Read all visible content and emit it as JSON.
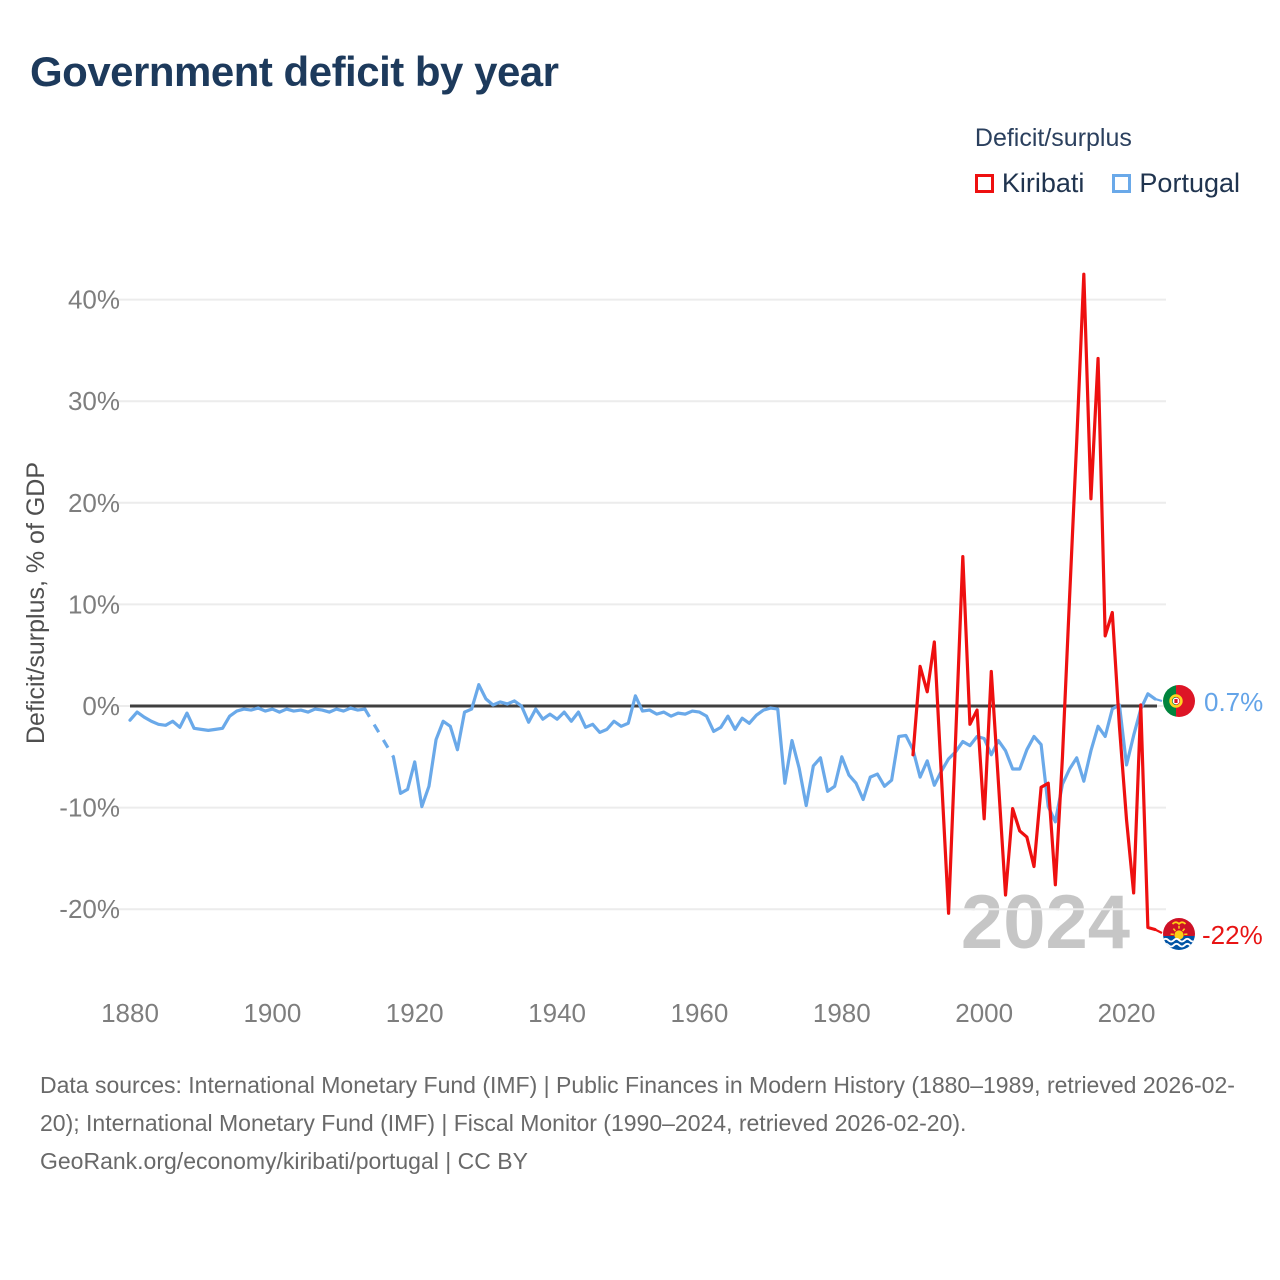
{
  "title": "Government deficit by year",
  "legend": {
    "title": "Deficit/surplus",
    "items": [
      {
        "label": "Kiribati",
        "color": "#ee1010"
      },
      {
        "label": "Portugal",
        "color": "#6aa9e9"
      }
    ]
  },
  "watermark": "2024",
  "end_labels": {
    "portugal": "0.7%",
    "kiribati": "-22%"
  },
  "footer": {
    "sources": "Data sources: International Monetary Fund (IMF) | Public Finances in Modern History (1880–1989, retrieved 2026-02-20); International Monetary Fund (IMF) | Fiscal Monitor (1990–2024, retrieved 2026-02-20).",
    "attribution": "GeoRank.org/economy/kiribati/portugal | CC BY"
  },
  "chart_data": {
    "type": "line",
    "title": "Government deficit by year",
    "ylabel": "Deficit/surplus, % of GDP",
    "xlabel": "",
    "ylim": [
      -24,
      44
    ],
    "xlim": [
      1878,
      2026
    ],
    "grid": true,
    "zero_baseline": true,
    "legend_position": "top-right",
    "yticks": [
      {
        "value": 40,
        "label": "40%"
      },
      {
        "value": 30,
        "label": "30%"
      },
      {
        "value": 20,
        "label": "20%"
      },
      {
        "value": 10,
        "label": "10%"
      },
      {
        "value": 0,
        "label": "0%"
      },
      {
        "value": -10,
        "label": "-10%"
      },
      {
        "value": -20,
        "label": "-20%"
      }
    ],
    "xticks": [
      {
        "value": 1880,
        "label": "1880"
      },
      {
        "value": 1900,
        "label": "1900"
      },
      {
        "value": 1920,
        "label": "1920"
      },
      {
        "value": 1940,
        "label": "1940"
      },
      {
        "value": 1960,
        "label": "1960"
      },
      {
        "value": 1980,
        "label": "1980"
      },
      {
        "value": 2000,
        "label": "2000"
      },
      {
        "value": 2020,
        "label": "2020"
      }
    ],
    "series": [
      {
        "name": "Kiribati",
        "color": "#ee1010",
        "start_year": 1990,
        "end_year": 2024,
        "values": [
          -4.8,
          3.9,
          1.4,
          6.3,
          -7.0,
          -20.4,
          -3.0,
          14.7,
          -1.8,
          -0.4,
          -11.1,
          3.4,
          -7.5,
          -18.6,
          -10.1,
          -12.3,
          -12.9,
          -15.8,
          -8.0,
          -7.6,
          -17.6,
          -5.0,
          10.7,
          26.0,
          42.5,
          20.4,
          34.2,
          6.9,
          9.2,
          -2.0,
          -11.2,
          -18.4,
          0.1,
          -21.8,
          -22.0
        ]
      },
      {
        "name": "Portugal",
        "color": "#6aa9e9",
        "start_year": 1880,
        "end_year": 2024,
        "values": [
          -1.4,
          -0.6,
          -1.1,
          -1.5,
          -1.8,
          -1.9,
          -1.5,
          -2.1,
          -0.7,
          -2.2,
          -2.3,
          -2.4,
          -2.3,
          -2.2,
          -1.0,
          -0.5,
          -0.3,
          -0.4,
          -0.2,
          -0.5,
          -0.3,
          -0.6,
          -0.3,
          -0.5,
          -0.4,
          -0.6,
          -0.3,
          -0.4,
          -0.6,
          -0.3,
          -0.5,
          -0.2,
          -0.4,
          -0.3,
          null,
          null,
          null,
          -5.0,
          -8.6,
          -8.2,
          -5.5,
          -9.9,
          -7.9,
          -3.3,
          -1.5,
          -2.0,
          -4.3,
          -0.6,
          -0.3,
          2.1,
          0.7,
          0.1,
          0.4,
          0.2,
          0.5,
          0.0,
          -1.6,
          -0.3,
          -1.3,
          -0.8,
          -1.3,
          -0.6,
          -1.5,
          -0.6,
          -2.1,
          -1.8,
          -2.6,
          -2.3,
          -1.5,
          -2.0,
          -1.7,
          1.0,
          -0.5,
          -0.4,
          -0.8,
          -0.6,
          -1.0,
          -0.7,
          -0.8,
          -0.5,
          -0.6,
          -1.0,
          -2.5,
          -2.1,
          -1.0,
          -2.3,
          -1.2,
          -1.7,
          -0.9,
          -0.4,
          -0.2,
          -0.3,
          -7.6,
          -3.4,
          -6.1,
          -9.8,
          -5.9,
          -5.1,
          -8.4,
          -7.9,
          -5.0,
          -6.8,
          -7.6,
          -9.2,
          -7.0,
          -6.7,
          -7.9,
          -7.3,
          -3.0,
          -2.9,
          -4.3,
          -7.0,
          -5.4,
          -7.8,
          -6.4,
          -5.2,
          -4.5,
          -3.5,
          -3.9,
          -3.0,
          -3.2,
          -4.8,
          -3.4,
          -4.4,
          -6.2,
          -6.2,
          -4.3,
          -3.0,
          -3.8,
          -9.9,
          -11.4,
          -7.7,
          -6.2,
          -5.1,
          -7.4,
          -4.4,
          -2.0,
          -3.0,
          -0.3,
          0.1,
          -5.8,
          -2.9,
          -0.3,
          1.2,
          0.7
        ]
      }
    ],
    "end_markers": [
      {
        "series": "Portugal",
        "year": 2024,
        "value": 0.7,
        "label": "0.7%"
      },
      {
        "series": "Kiribati",
        "year": 2024,
        "value": -22,
        "label": "-22%"
      }
    ]
  }
}
